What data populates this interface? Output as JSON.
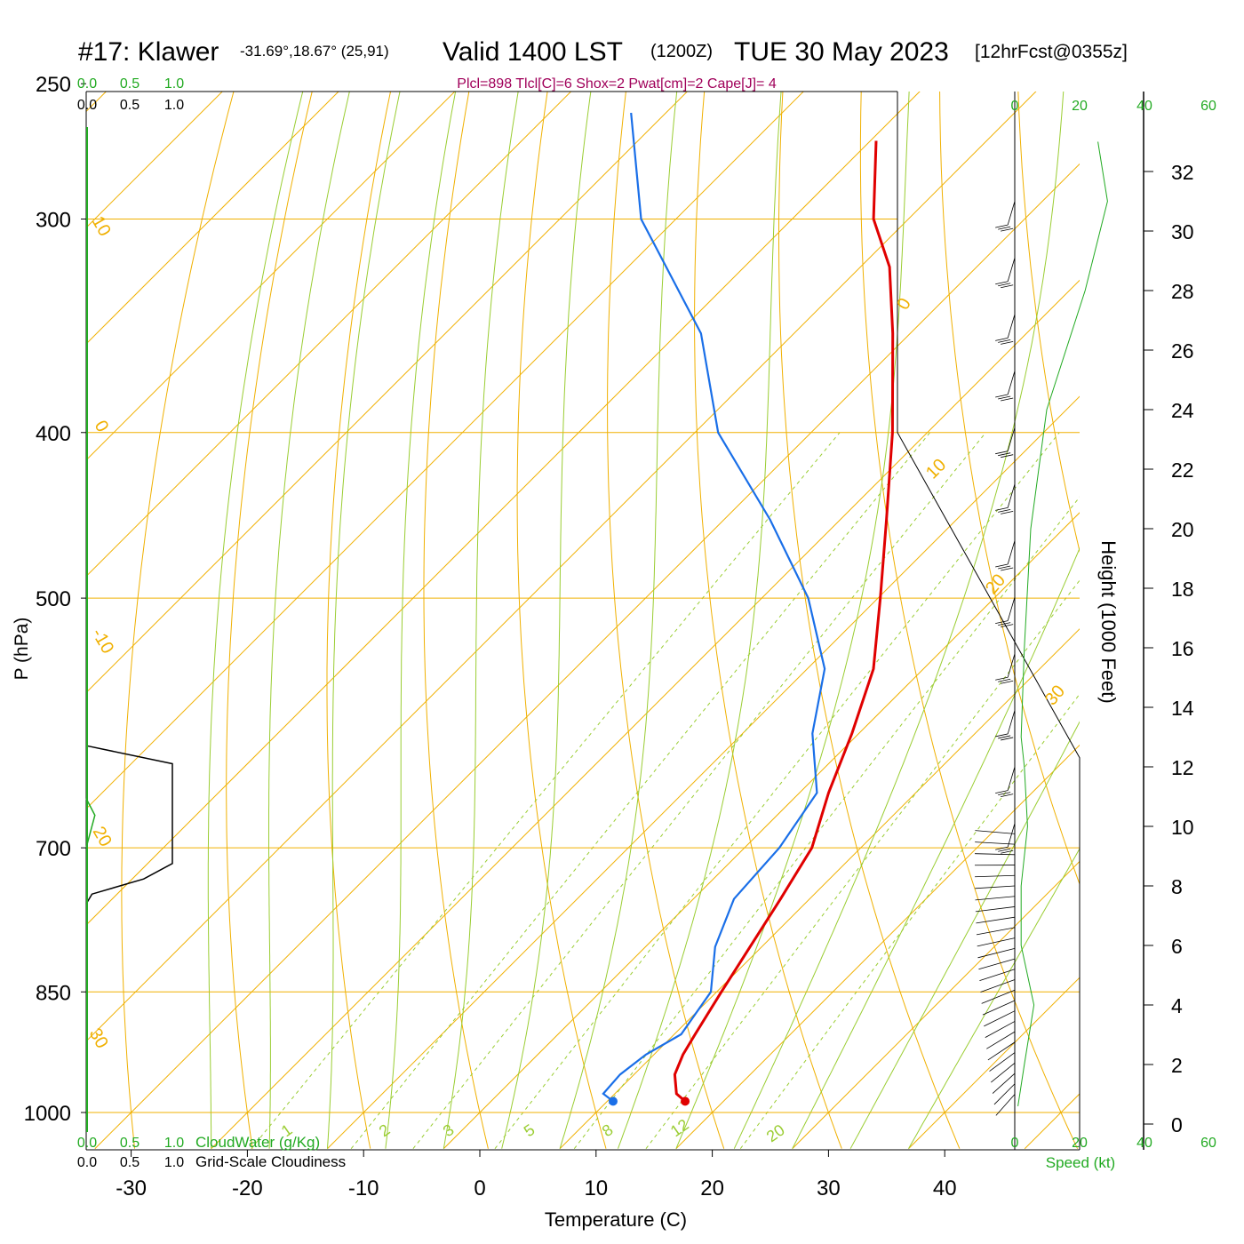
{
  "header": {
    "station": "#17: Klawer",
    "coords": "-31.69°,18.67° (25,91)",
    "valid_main": "Valid 1400 LST",
    "valid_utc": "(1200Z)",
    "date": "TUE 30 May 2023",
    "forecast": "[12hrFcst@0355z]",
    "indices": "Plcl=898 Tlcl[C]=6 Shox=2 Pwat[cm]=2 Cape[J]= 4"
  },
  "axes": {
    "ylabel": "P (hPa)",
    "xlabel": "Temperature (C)",
    "height_label": "Height (1000 Feet)",
    "speed_label": "Speed (kt)",
    "cloudwater_label": "CloudWater (g/Kg)",
    "cloudiness_label": "Grid-Scale Cloudiness",
    "cloud_scale": [
      "0.0",
      "0.5",
      "1.0"
    ],
    "speed_ticks": [
      "0",
      "20",
      "40",
      "60"
    ],
    "pressure_ticks": [
      "250",
      "300",
      "400",
      "500",
      "700",
      "850",
      "1000"
    ],
    "temp_ticks": [
      "-30",
      "-20",
      "-10",
      "0",
      "10",
      "20",
      "30",
      "40"
    ],
    "height_ticks": [
      "0",
      "2",
      "4",
      "6",
      "8",
      "10",
      "12",
      "14",
      "16",
      "18",
      "20",
      "22",
      "24",
      "26",
      "28",
      "30",
      "32"
    ],
    "isotherm_labels": [
      "10",
      "0",
      "-10",
      "20",
      "30",
      "0",
      "10",
      "20",
      "30"
    ],
    "mixing_ratio_labels": [
      "1",
      "2",
      "3",
      "5",
      "8",
      "12",
      "20"
    ]
  },
  "colors": {
    "temperature": "#e00000",
    "dewpoint": "#1a6fe8",
    "isotherm": "#f0b000",
    "dry_adiabat": "#f0b000",
    "moist_adiabat": "#9acd32",
    "title_indices": "#a0005a",
    "scale_green": "#22aa22"
  },
  "chart_data": {
    "type": "line",
    "title": "Skew-T sounding",
    "series": [
      {
        "name": "Temperature",
        "points": [
          {
            "p": 985,
            "t": 16.7
          },
          {
            "p": 975,
            "t": 15.3
          },
          {
            "p": 950,
            "t": 13.5
          },
          {
            "p": 925,
            "t": 12.5
          },
          {
            "p": 900,
            "t": 11.8
          },
          {
            "p": 850,
            "t": 10.4
          },
          {
            "p": 800,
            "t": 9.0
          },
          {
            "p": 750,
            "t": 7.5
          },
          {
            "p": 700,
            "t": 5.8
          },
          {
            "p": 650,
            "t": 2.5
          },
          {
            "p": 600,
            "t": -0.6
          },
          {
            "p": 550,
            "t": -4.3
          },
          {
            "p": 500,
            "t": -9.8
          },
          {
            "p": 450,
            "t": -16.0
          },
          {
            "p": 400,
            "t": -23.0
          },
          {
            "p": 350,
            "t": -31.5
          },
          {
            "p": 320,
            "t": -37.5
          },
          {
            "p": 300,
            "t": -43.0
          },
          {
            "p": 270,
            "t": -49.5
          }
        ]
      },
      {
        "name": "Dewpoint",
        "points": [
          {
            "p": 985,
            "t": 10.5
          },
          {
            "p": 975,
            "t": 9.0
          },
          {
            "p": 950,
            "t": 8.8
          },
          {
            "p": 925,
            "t": 9.3
          },
          {
            "p": 900,
            "t": 10.6
          },
          {
            "p": 850,
            "t": 9.5
          },
          {
            "p": 800,
            "t": 6.0
          },
          {
            "p": 750,
            "t": 3.5
          },
          {
            "p": 700,
            "t": 3.0
          },
          {
            "p": 650,
            "t": 1.5
          },
          {
            "p": 600,
            "t": -4.0
          },
          {
            "p": 550,
            "t": -8.5
          },
          {
            "p": 500,
            "t": -16.0
          },
          {
            "p": 450,
            "t": -26.0
          },
          {
            "p": 400,
            "t": -38.0
          },
          {
            "p": 350,
            "t": -48.0
          },
          {
            "p": 300,
            "t": -63.0
          },
          {
            "p": 260,
            "t": -73.0
          }
        ]
      }
    ],
    "surface": {
      "p": 985,
      "t": 16.7,
      "td": 10.5
    },
    "wind_profile_kt": [
      {
        "h_kft": 0.6,
        "kt": 1
      },
      {
        "h_kft": 2,
        "kt": 3
      },
      {
        "h_kft": 4,
        "kt": 6
      },
      {
        "h_kft": 5,
        "kt": 4
      },
      {
        "h_kft": 6,
        "kt": 2
      },
      {
        "h_kft": 8,
        "kt": 2
      },
      {
        "h_kft": 10,
        "kt": 4
      },
      {
        "h_kft": 12,
        "kt": 3
      },
      {
        "h_kft": 13,
        "kt": 2
      },
      {
        "h_kft": 16,
        "kt": 3
      },
      {
        "h_kft": 20,
        "kt": 5
      },
      {
        "h_kft": 24,
        "kt": 10
      },
      {
        "h_kft": 28,
        "kt": 22
      },
      {
        "h_kft": 31,
        "kt": 29
      },
      {
        "h_kft": 33,
        "kt": 26
      }
    ],
    "cloudiness": [
      {
        "p": 610,
        "v": 0.0
      },
      {
        "p": 625,
        "v": 0.75
      },
      {
        "p": 715,
        "v": 0.75
      },
      {
        "p": 730,
        "v": 0.5
      },
      {
        "p": 745,
        "v": 0.05
      },
      {
        "p": 755,
        "v": 0.0
      }
    ],
    "cloudwater": [
      {
        "p": 655,
        "v": 0.0
      },
      {
        "p": 670,
        "v": 0.07
      },
      {
        "p": 700,
        "v": 0.0
      }
    ],
    "xlim": [
      -34,
      47
    ],
    "ylim": [
      1050,
      250
    ]
  }
}
